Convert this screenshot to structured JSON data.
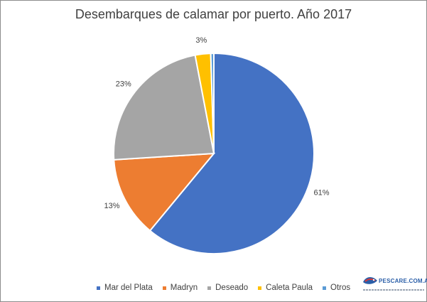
{
  "chart_data": {
    "type": "pie",
    "title": "Desembarques de calamar por puerto. Año 2017",
    "slices": [
      {
        "name": "Mar del Plata",
        "value": 61,
        "label": "61%",
        "color": "#4472C4"
      },
      {
        "name": "Madryn",
        "value": 13,
        "label": "13%",
        "color": "#ED7D31"
      },
      {
        "name": "Deseado",
        "value": 23,
        "label": "23%",
        "color": "#A5A5A5"
      },
      {
        "name": "Caleta Paula",
        "value": 2.5,
        "label": "3%",
        "color": "#FFC000"
      },
      {
        "name": "Otros",
        "value": 0.5,
        "label": "",
        "color": "#5B9BD5"
      }
    ],
    "legend_position": "bottom"
  },
  "logo": {
    "text": "PESCARE.COM.AR"
  }
}
